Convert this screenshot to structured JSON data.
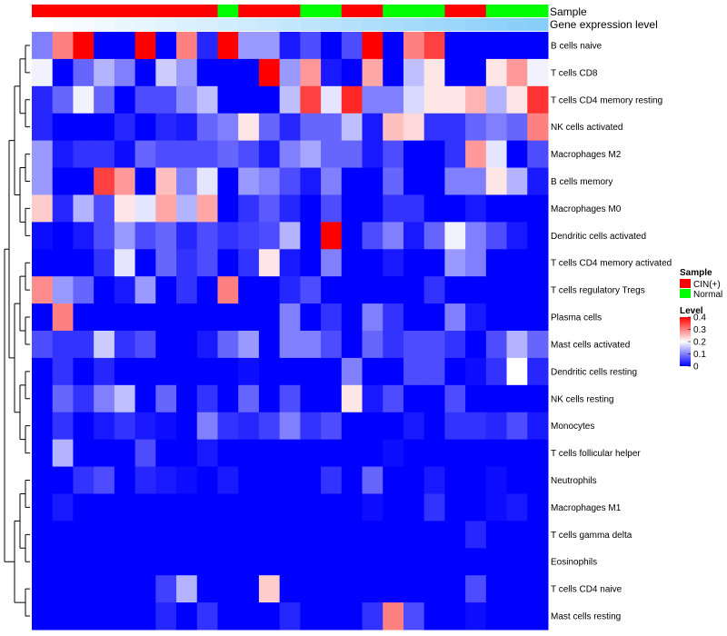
{
  "chart_data": {
    "type": "heatmap",
    "title": "",
    "color_scale": {
      "low": "#0000ff",
      "mid": "#ffffff",
      "high": "#ff0000",
      "min": 0,
      "mid_value": 0.2,
      "max": 0.4
    },
    "column_annotations": {
      "sample_label": "Sample",
      "expression_label": "Gene expression level",
      "sample": [
        "CIN(+)",
        "CIN(+)",
        "CIN(+)",
        "CIN(+)",
        "CIN(+)",
        "CIN(+)",
        "CIN(+)",
        "CIN(+)",
        "CIN(+)",
        "Normal",
        "CIN(+)",
        "CIN(+)",
        "CIN(+)",
        "Normal",
        "Normal",
        "CIN(+)",
        "CIN(+)",
        "Normal",
        "Normal",
        "Normal",
        "CIN(+)",
        "CIN(+)",
        "Normal",
        "Normal",
        "Normal"
      ],
      "expression": [
        0.0,
        0.01,
        0.02,
        0.03,
        0.04,
        0.05,
        0.06,
        0.07,
        0.08,
        0.09,
        0.1,
        0.11,
        0.12,
        0.13,
        0.14,
        0.15,
        0.16,
        0.17,
        0.18,
        0.19,
        0.2,
        0.21,
        0.22,
        0.23,
        0.24
      ]
    },
    "rows": [
      "B cells naive",
      "T cells CD8",
      "T cells CD4 memory resting",
      "NK cells activated",
      "Macrophages M2",
      "B cells memory",
      "Macrophages M0",
      "Dendritic cells activated",
      "T cells CD4 memory activated",
      "T cells regulatory  Tregs",
      "Plasma cells",
      "Mast cells activated",
      "Dendritic cells resting",
      "NK cells resting",
      "Monocytes",
      "T cells follicular helper",
      "Neutrophils",
      "Macrophages M1",
      "T cells gamma delta",
      "Eosinophils",
      "T cells CD4 naive",
      "Mast cells resting"
    ],
    "values": [
      [
        0.1,
        0.3,
        0.4,
        0.0,
        0.0,
        0.4,
        0.0,
        0.3,
        0.03,
        0.4,
        0.12,
        0.12,
        0.02,
        0.06,
        0.0,
        0.06,
        0.4,
        0.0,
        0.3,
        0.35,
        0.0,
        0.0,
        0.0,
        0.0,
        0.0
      ],
      [
        0.19,
        0.0,
        0.08,
        0.14,
        0.1,
        0.0,
        0.16,
        0.12,
        0.0,
        0.0,
        0.0,
        0.4,
        0.12,
        0.28,
        0.02,
        0.0,
        0.27,
        0.0,
        0.15,
        0.22,
        0.0,
        0.0,
        0.22,
        0.28,
        0.19
      ],
      [
        0.03,
        0.08,
        0.19,
        0.08,
        0.0,
        0.06,
        0.06,
        0.11,
        0.15,
        0.0,
        0.0,
        0.0,
        0.15,
        0.35,
        0.18,
        0.37,
        0.1,
        0.1,
        0.17,
        0.22,
        0.22,
        0.26,
        0.14,
        0.22,
        0.36
      ],
      [
        0.03,
        0.0,
        0.0,
        0.0,
        0.03,
        0.0,
        0.03,
        0.02,
        0.08,
        0.1,
        0.22,
        0.08,
        0.03,
        0.08,
        0.08,
        0.15,
        0.02,
        0.25,
        0.23,
        0.04,
        0.04,
        0.08,
        0.1,
        0.08,
        0.3
      ],
      [
        0.12,
        0.02,
        0.04,
        0.04,
        0.01,
        0.08,
        0.06,
        0.06,
        0.06,
        0.08,
        0.06,
        0.02,
        0.1,
        0.13,
        0.08,
        0.08,
        0.02,
        0.06,
        0.0,
        0.0,
        0.04,
        0.28,
        0.18,
        0.0,
        0.06
      ],
      [
        0.12,
        0.0,
        0.0,
        0.35,
        0.28,
        0.0,
        0.25,
        0.1,
        0.18,
        0.0,
        0.12,
        0.1,
        0.06,
        0.02,
        0.1,
        0.0,
        0.0,
        0.08,
        0.0,
        0.0,
        0.1,
        0.1,
        0.22,
        0.14,
        0.02
      ],
      [
        0.24,
        0.03,
        0.14,
        0.06,
        0.22,
        0.18,
        0.27,
        0.14,
        0.27,
        0.0,
        0.04,
        0.07,
        0.03,
        0.0,
        0.06,
        0.0,
        0.0,
        0.04,
        0.04,
        0.0,
        0.0,
        0.02,
        0.0,
        0.0,
        0.0
      ],
      [
        0.01,
        0.0,
        0.02,
        0.06,
        0.12,
        0.06,
        0.08,
        0.03,
        0.06,
        0.04,
        0.05,
        0.06,
        0.14,
        0.0,
        0.4,
        0.0,
        0.06,
        0.1,
        0.02,
        0.08,
        0.19,
        0.1,
        0.06,
        0.02,
        0.0
      ],
      [
        0.0,
        0.0,
        0.0,
        0.04,
        0.18,
        0.0,
        0.08,
        0.04,
        0.06,
        0.0,
        0.04,
        0.22,
        0.02,
        0.0,
        0.1,
        0.0,
        0.0,
        0.02,
        0.0,
        0.0,
        0.12,
        0.1,
        0.0,
        0.0,
        0.0
      ],
      [
        0.29,
        0.12,
        0.08,
        0.0,
        0.02,
        0.12,
        0.0,
        0.04,
        0.0,
        0.3,
        0.0,
        0.0,
        0.03,
        0.06,
        0.0,
        0.0,
        0.0,
        0.0,
        0.0,
        0.04,
        0.0,
        0.0,
        0.0,
        0.0,
        0.0
      ],
      [
        0.0,
        0.3,
        0.0,
        0.0,
        0.0,
        0.0,
        0.0,
        0.0,
        0.0,
        0.0,
        0.0,
        0.0,
        0.1,
        0.0,
        0.04,
        0.0,
        0.1,
        0.04,
        0.0,
        0.0,
        0.1,
        0.02,
        0.0,
        0.0,
        0.0
      ],
      [
        0.06,
        0.04,
        0.04,
        0.16,
        0.04,
        0.06,
        0.0,
        0.0,
        0.02,
        0.08,
        0.12,
        0.0,
        0.1,
        0.1,
        0.06,
        0.0,
        0.08,
        0.04,
        0.06,
        0.06,
        0.04,
        0.0,
        0.06,
        0.14,
        0.08
      ],
      [
        0.0,
        0.04,
        0.0,
        0.03,
        0.0,
        0.0,
        0.0,
        0.0,
        0.0,
        0.0,
        0.01,
        0.0,
        0.0,
        0.0,
        0.0,
        0.1,
        0.0,
        0.0,
        0.06,
        0.06,
        0.0,
        0.01,
        0.04,
        0.2,
        0.03
      ],
      [
        0.0,
        0.08,
        0.04,
        0.1,
        0.15,
        0.0,
        0.08,
        0.0,
        0.04,
        0.0,
        0.08,
        0.0,
        0.06,
        0.0,
        0.0,
        0.22,
        0.02,
        0.06,
        0.0,
        0.0,
        0.06,
        0.0,
        0.0,
        0.0,
        0.0
      ],
      [
        0.0,
        0.04,
        0.0,
        0.02,
        0.04,
        0.02,
        0.01,
        0.0,
        0.1,
        0.04,
        0.03,
        0.05,
        0.1,
        0.04,
        0.06,
        0.0,
        0.0,
        0.0,
        0.02,
        0.0,
        0.04,
        0.04,
        0.03,
        0.06,
        0.02
      ],
      [
        0.0,
        0.14,
        0.0,
        0.0,
        0.0,
        0.06,
        0.0,
        0.0,
        0.02,
        0.0,
        0.0,
        0.0,
        0.0,
        0.0,
        0.0,
        0.0,
        0.0,
        0.01,
        0.0,
        0.0,
        0.0,
        0.0,
        0.0,
        0.0,
        0.0
      ],
      [
        0.0,
        0.0,
        0.04,
        0.06,
        0.0,
        0.03,
        0.02,
        0.01,
        0.0,
        0.02,
        0.0,
        0.0,
        0.0,
        0.0,
        0.04,
        0.0,
        0.08,
        0.0,
        0.0,
        0.02,
        0.0,
        0.0,
        0.01,
        0.0,
        0.0
      ],
      [
        0.0,
        0.02,
        0.0,
        0.0,
        0.0,
        0.0,
        0.0,
        0.0,
        0.0,
        0.0,
        0.0,
        0.0,
        0.0,
        0.0,
        0.0,
        0.0,
        0.01,
        0.0,
        0.0,
        0.04,
        0.0,
        0.0,
        0.01,
        0.02,
        0.0
      ],
      [
        0.0,
        0.0,
        0.0,
        0.0,
        0.0,
        0.0,
        0.0,
        0.0,
        0.0,
        0.0,
        0.0,
        0.0,
        0.0,
        0.0,
        0.0,
        0.0,
        0.0,
        0.0,
        0.0,
        0.0,
        0.0,
        0.03,
        0.0,
        0.0,
        0.0
      ],
      [
        0.0,
        0.0,
        0.0,
        0.0,
        0.0,
        0.0,
        0.0,
        0.0,
        0.0,
        0.0,
        0.0,
        0.0,
        0.0,
        0.0,
        0.0,
        0.0,
        0.0,
        0.0,
        0.0,
        0.0,
        0.0,
        0.0,
        0.0,
        0.0,
        0.0
      ],
      [
        0.0,
        0.0,
        0.0,
        0.0,
        0.0,
        0.0,
        0.05,
        0.14,
        0.0,
        0.0,
        0.0,
        0.24,
        0.0,
        0.0,
        0.0,
        0.0,
        0.0,
        0.0,
        0.0,
        0.0,
        0.0,
        0.06,
        0.0,
        0.0,
        0.0
      ],
      [
        0.0,
        0.0,
        0.0,
        0.0,
        0.0,
        0.0,
        0.03,
        0.0,
        0.04,
        0.0,
        0.0,
        0.0,
        0.03,
        0.0,
        0.0,
        0.0,
        0.04,
        0.3,
        0.06,
        0.0,
        0.0,
        0.01,
        0.0,
        0.0,
        0.0
      ]
    ],
    "legend": {
      "sample_title": "Sample",
      "sample_entries": [
        {
          "label": "CIN(+)",
          "color": "#ff0000"
        },
        {
          "label": "Normal",
          "color": "#00ff00"
        }
      ],
      "level_title": "Level",
      "level_ticks": [
        {
          "label": "0.4",
          "value": 0.4
        },
        {
          "label": "0.3",
          "value": 0.3
        },
        {
          "label": "0.2",
          "value": 0.2
        },
        {
          "label": "0.1",
          "value": 0.1
        },
        {
          "label": "0",
          "value": 0
        }
      ]
    },
    "sample_colors": {
      "CIN(+)": "#ff0000",
      "Normal": "#00ff00"
    },
    "expression_colors": {
      "low": "#ffffff",
      "high": "#87cefa"
    }
  }
}
